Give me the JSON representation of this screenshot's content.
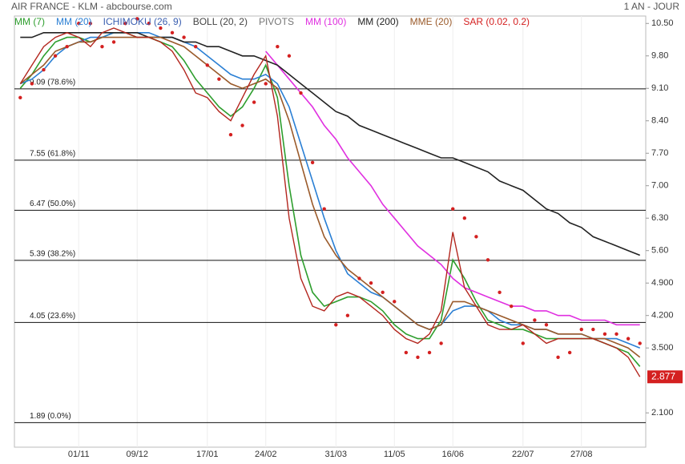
{
  "chart_data": {
    "type": "line",
    "title": "AIR FRANCE - KLM - abcbourse.com",
    "period": "1 AN - JOUR",
    "categories": [
      null,
      null,
      null,
      null,
      null,
      "01/11",
      null,
      null,
      null,
      null,
      "09/12",
      null,
      null,
      null,
      null,
      null,
      "17/01",
      null,
      null,
      null,
      null,
      "24/02",
      null,
      null,
      null,
      null,
      null,
      "31/03",
      null,
      null,
      null,
      null,
      "11/05",
      null,
      null,
      null,
      null,
      "16/06",
      null,
      null,
      null,
      null,
      null,
      "22/07",
      null,
      null,
      null,
      null,
      "27/08",
      null,
      null,
      null,
      null,
      null
    ],
    "price": {
      "color": "#b3261e",
      "values": [
        9.2,
        9.6,
        10.0,
        10.2,
        10.3,
        10.2,
        10.0,
        10.3,
        10.4,
        10.3,
        10.2,
        10.2,
        10.1,
        9.9,
        9.5,
        9.0,
        8.9,
        8.6,
        8.4,
        8.9,
        9.4,
        9.8,
        8.5,
        6.3,
        5.0,
        4.4,
        4.3,
        4.6,
        4.7,
        4.6,
        4.4,
        4.2,
        3.9,
        3.7,
        3.6,
        3.8,
        4.3,
        6.0,
        4.8,
        4.4,
        4.0,
        3.9,
        3.9,
        4.0,
        3.8,
        3.6,
        3.7,
        3.7,
        3.7,
        3.7,
        3.6,
        3.5,
        3.3,
        2.877
      ]
    },
    "series": [
      {
        "name": "MM (7)",
        "color": "#2e9e2e",
        "values": [
          9.1,
          9.4,
          9.8,
          10.1,
          10.2,
          10.2,
          10.1,
          10.2,
          10.3,
          10.3,
          10.2,
          10.2,
          10.1,
          10.0,
          9.7,
          9.3,
          9.0,
          8.7,
          8.5,
          8.7,
          9.1,
          9.6,
          8.9,
          7.0,
          5.5,
          4.7,
          4.4,
          4.5,
          4.6,
          4.6,
          4.5,
          4.3,
          4.0,
          3.8,
          3.7,
          3.7,
          4.1,
          5.4,
          5.0,
          4.5,
          4.1,
          4.0,
          3.9,
          3.9,
          3.8,
          3.7,
          3.7,
          3.7,
          3.7,
          3.7,
          3.6,
          3.5,
          3.4,
          3.1
        ]
      },
      {
        "name": "MM (20)",
        "color": "#2a7fd4",
        "values": [
          9.2,
          9.3,
          9.5,
          9.8,
          10.0,
          10.1,
          10.2,
          10.2,
          10.3,
          10.3,
          10.3,
          10.3,
          10.2,
          10.2,
          10.1,
          10.0,
          9.8,
          9.6,
          9.4,
          9.3,
          9.3,
          9.4,
          9.2,
          8.7,
          7.9,
          7.1,
          6.3,
          5.6,
          5.1,
          4.9,
          4.7,
          4.6,
          4.4,
          4.2,
          4.0,
          3.9,
          4.0,
          4.3,
          4.4,
          4.4,
          4.3,
          4.1,
          4.0,
          4.0,
          3.9,
          3.9,
          3.8,
          3.8,
          3.8,
          3.7,
          3.7,
          3.7,
          3.6,
          3.5
        ]
      },
      {
        "name": "ICHIMOKU (26, 9)",
        "color": "#3a5fb0"
      },
      {
        "name": "BOLL (20, 2)",
        "color": "#444444"
      },
      {
        "name": "PIVOTS",
        "color": "#777777"
      },
      {
        "name": "MM (100)",
        "color": "#e030e0",
        "values": [
          null,
          null,
          null,
          null,
          null,
          null,
          null,
          null,
          null,
          null,
          null,
          null,
          null,
          null,
          null,
          null,
          null,
          null,
          null,
          null,
          null,
          9.9,
          9.6,
          9.3,
          9.0,
          8.7,
          8.3,
          8.0,
          7.6,
          7.3,
          7.0,
          6.6,
          6.3,
          6.0,
          5.7,
          5.5,
          5.3,
          5.0,
          4.8,
          4.7,
          4.6,
          4.5,
          4.4,
          4.4,
          4.3,
          4.3,
          4.2,
          4.2,
          4.1,
          4.1,
          4.1,
          4.0,
          4.0,
          4.0
        ]
      },
      {
        "name": "MM (200)",
        "color": "#222222",
        "values": [
          10.2,
          10.2,
          10.3,
          10.3,
          10.3,
          10.3,
          10.3,
          10.3,
          10.3,
          10.3,
          10.3,
          10.2,
          10.2,
          10.2,
          10.1,
          10.1,
          10.0,
          10.0,
          9.9,
          9.8,
          9.8,
          9.7,
          9.6,
          9.4,
          9.2,
          9.0,
          8.8,
          8.6,
          8.5,
          8.3,
          8.2,
          8.1,
          8.0,
          7.9,
          7.8,
          7.7,
          7.6,
          7.6,
          7.5,
          7.4,
          7.3,
          7.1,
          7.0,
          6.9,
          6.7,
          6.5,
          6.4,
          6.2,
          6.1,
          5.9,
          5.8,
          5.7,
          5.6,
          5.5
        ]
      },
      {
        "name": "MME (20)",
        "color": "#9a5a2a",
        "values": [
          9.2,
          9.4,
          9.6,
          9.9,
          10.0,
          10.1,
          10.1,
          10.2,
          10.2,
          10.2,
          10.2,
          10.2,
          10.2,
          10.1,
          10.0,
          9.8,
          9.6,
          9.4,
          9.2,
          9.1,
          9.2,
          9.3,
          9.1,
          8.4,
          7.5,
          6.6,
          5.9,
          5.5,
          5.2,
          5.0,
          4.8,
          4.6,
          4.4,
          4.2,
          4.0,
          3.9,
          4.0,
          4.5,
          4.5,
          4.4,
          4.3,
          4.2,
          4.1,
          4.0,
          3.9,
          3.9,
          3.8,
          3.8,
          3.8,
          3.7,
          3.7,
          3.6,
          3.5,
          3.3
        ]
      },
      {
        "name": "SAR (0.02, 0.2)",
        "color": "#d42020",
        "style": "dots",
        "values": [
          8.9,
          9.2,
          9.5,
          9.8,
          10.0,
          10.5,
          10.5,
          10.0,
          10.1,
          10.5,
          10.6,
          10.5,
          10.4,
          10.3,
          10.2,
          10.0,
          9.6,
          9.3,
          8.1,
          8.3,
          8.8,
          9.2,
          10.0,
          9.8,
          9.0,
          7.5,
          6.5,
          4.0,
          4.2,
          5.0,
          4.9,
          4.7,
          4.5,
          3.4,
          3.3,
          3.4,
          3.6,
          6.5,
          6.3,
          5.9,
          5.4,
          4.7,
          4.4,
          3.6,
          4.1,
          4.0,
          3.3,
          3.4,
          3.9,
          3.9,
          3.8,
          3.8,
          3.7,
          3.6
        ]
      }
    ],
    "fibonacci": [
      {
        "value": 9.09,
        "label": "9.09  (78.6%)"
      },
      {
        "value": 7.55,
        "label": "7.55  (61.8%)"
      },
      {
        "value": 6.47,
        "label": "6.47  (50.0%)"
      },
      {
        "value": 5.39,
        "label": "5.39  (38.2%)"
      },
      {
        "value": 4.05,
        "label": "4.05  (23.6%)"
      },
      {
        "value": 1.89,
        "label": "1.89  (0.0%)"
      }
    ],
    "ylim": [
      1.36,
      10.66
    ],
    "yticks": [
      {
        "value": 10.5,
        "label": "10.50"
      },
      {
        "value": 9.8,
        "label": "9.80"
      },
      {
        "value": 9.1,
        "label": "9.10"
      },
      {
        "value": 8.4,
        "label": "8.40"
      },
      {
        "value": 7.7,
        "label": "7.70"
      },
      {
        "value": 7.0,
        "label": "7.00"
      },
      {
        "value": 6.3,
        "label": "6.30"
      },
      {
        "value": 5.6,
        "label": "5.60"
      },
      {
        "value": 4.9,
        "label": "4.900"
      },
      {
        "value": 4.2,
        "label": "4.200"
      },
      {
        "value": 3.5,
        "label": "3.500"
      },
      {
        "value": 2.1,
        "label": "2.100"
      }
    ]
  }
}
